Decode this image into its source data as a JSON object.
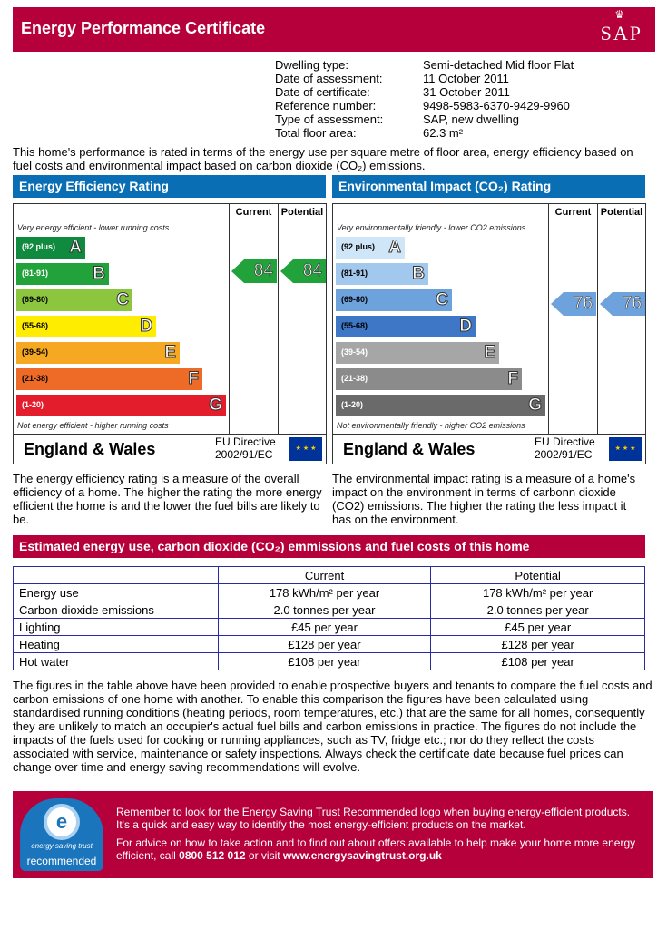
{
  "header": {
    "title": "Energy Performance Certificate",
    "logo": "SAP"
  },
  "info": [
    {
      "label": "Dwelling type:",
      "value": "Semi-detached Mid floor Flat"
    },
    {
      "label": "Date of assessment:",
      "value": "11 October 2011"
    },
    {
      "label": "Date of certificate:",
      "value": "31 October 2011"
    },
    {
      "label": "Reference number:",
      "value": "9498-5983-6370-9429-9960"
    },
    {
      "label": "Type of assessment:",
      "value": "SAP, new dwelling"
    },
    {
      "label": "Total floor area:",
      "value": "62.3 m²"
    }
  ],
  "intro": "This home's performance is rated in terms of the energy use per square metre of floor area, energy efficiency based on fuel costs and environmental impact based on carbon dioxide (CO₂) emissions.",
  "charts": [
    {
      "title": "Energy Efficiency Rating",
      "current_label": "Current",
      "potential_label": "Potential",
      "top_note": "Very energy efficient - lower running costs",
      "bottom_note": "Not energy efficient - higher running costs",
      "bands": [
        {
          "range": "(92 plus)",
          "letter": "A",
          "color": "#0f8a3e"
        },
        {
          "range": "(81-91)",
          "letter": "B",
          "color": "#22a23a"
        },
        {
          "range": "(69-80)",
          "letter": "C",
          "color": "#8cc63f"
        },
        {
          "range": "(55-68)",
          "letter": "D",
          "color": "#ffed00"
        },
        {
          "range": "(39-54)",
          "letter": "E",
          "color": "#f7a823"
        },
        {
          "range": "(21-38)",
          "letter": "F",
          "color": "#ee6b27"
        },
        {
          "range": "(1-20)",
          "letter": "G",
          "color": "#e31d2b"
        }
      ],
      "current": "84",
      "potential": "84",
      "band_index": 1,
      "arrow_color": "#22a23a",
      "region": "England & Wales",
      "directive": [
        "EU Directive",
        "2002/91/EC"
      ],
      "description": "The energy efficiency rating is a measure of the overall efficiency of a home. The higher the rating the more energy efficient the home is and the lower the fuel bills are likely to be."
    },
    {
      "title": "Environmental Impact (CO₂) Rating",
      "current_label": "Current",
      "potential_label": "Potential",
      "top_note": "Very environmentally friendly - lower CO2 emissions",
      "bottom_note": "Not environmentally friendly - higher CO2 emissions",
      "bands": [
        {
          "range": "(92 plus)",
          "letter": "A",
          "color": "#cfe5f8"
        },
        {
          "range": "(81-91)",
          "letter": "B",
          "color": "#a3c8ee"
        },
        {
          "range": "(69-80)",
          "letter": "C",
          "color": "#6ea2dc"
        },
        {
          "range": "(55-68)",
          "letter": "D",
          "color": "#3e77c5"
        },
        {
          "range": "(39-54)",
          "letter": "E",
          "color": "#a6a6a6"
        },
        {
          "range": "(21-38)",
          "letter": "F",
          "color": "#8b8b8b"
        },
        {
          "range": "(1-20)",
          "letter": "G",
          "color": "#6a6a6a"
        }
      ],
      "current": "76",
      "potential": "76",
      "band_index": 2,
      "arrow_color": "#6ea2dc",
      "region": "England & Wales",
      "directive": [
        "EU Directive",
        "2002/91/EC"
      ],
      "description": "The environmental impact rating is a measure of a home's impact on the environment in terms of carbonn dioxide (CO2) emissions. The higher the rating the less impact it has on the environment."
    }
  ],
  "estimate": {
    "title": "Estimated energy use, carbon dioxide (CO₂) emmissions and fuel costs of this home",
    "columns": [
      "",
      "Current",
      "Potential"
    ],
    "rows": [
      [
        "Energy use",
        "178 kWh/m² per year",
        "178 kWh/m² per year"
      ],
      [
        "Carbon dioxide emissions",
        "2.0 tonnes per year",
        "2.0 tonnes per year"
      ],
      [
        "Lighting",
        "£45 per year",
        "£45 per year"
      ],
      [
        "Heating",
        "£128 per year",
        "£128 per year"
      ],
      [
        "Hot water",
        "£108 per year",
        "£108 per year"
      ]
    ]
  },
  "paragraph": "The figures in the table above have been provided to enable prospective buyers and tenants to compare the fuel costs and carbon emissions of one home with another. To enable this comparison the figures have been calculated using standardised running conditions (heating periods, room temperatures, etc.) that are the same for all homes, consequently they are unlikely to match an occupier's actual fuel bills and carbon emissions in practice. The figures do not include the impacts of the fuels used for cooking or running appliances, such as TV, fridge etc.; nor do they reflect the costs associated with service, maintenance or safety inspections. Always check the certificate date because fuel prices can change over time and energy saving recommendations will evolve.",
  "est_box": {
    "logo_text": "energy saving trust",
    "logo_label": "recommended",
    "p1": "Remember to look for the Energy Saving Trust Recommended logo when buying energy-efficient products. It's a quick and easy way to identify the most energy-efficient products on the market.",
    "p2_pre": "For advice on how to take action and to find out about offers available to help make your home more energy efficient, call ",
    "phone": "0800 512 012",
    "p2_mid": " or visit ",
    "url": "www.energysavingtrust.org.uk"
  }
}
